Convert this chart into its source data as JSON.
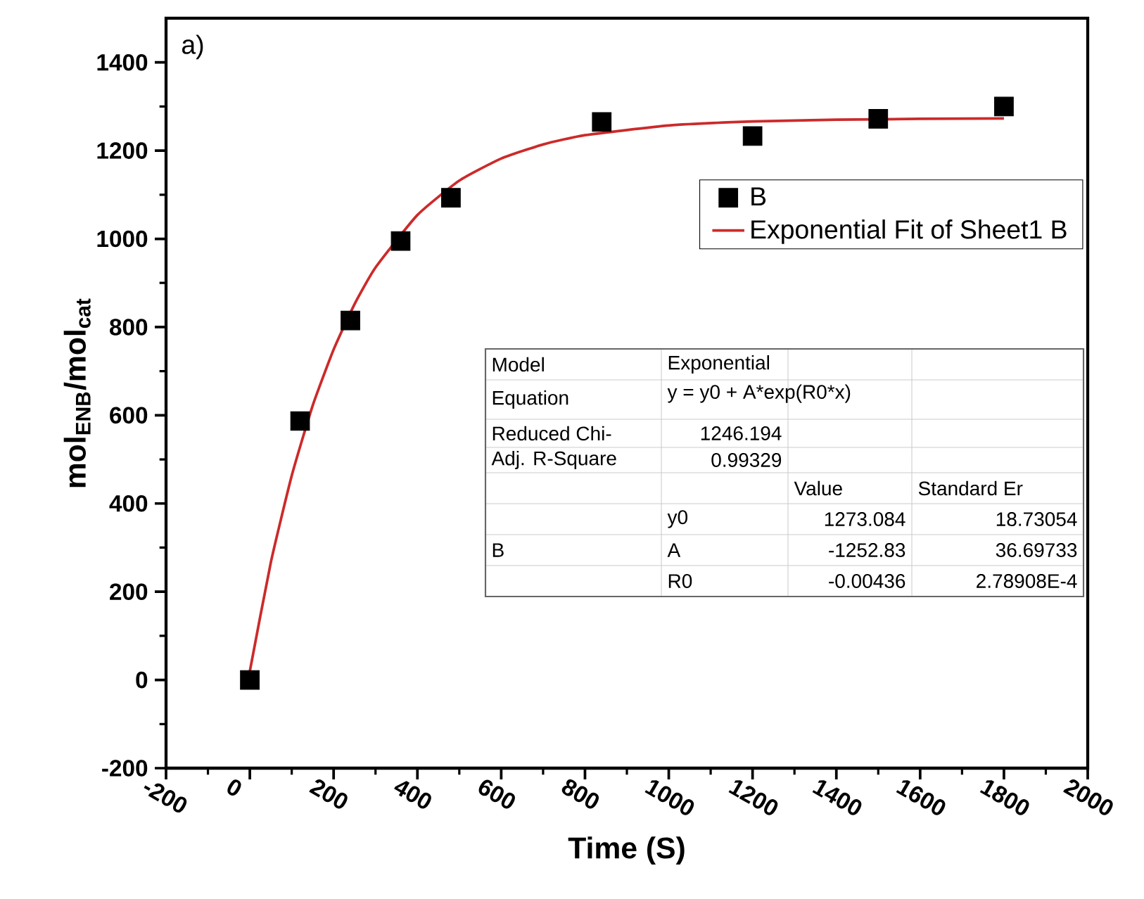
{
  "chart_data": {
    "type": "scatter",
    "xlabel": "Time (S)",
    "ylabel": "mol$_{ENB}$/mol$_{cat}$",
    "xlim": [
      -200,
      2000
    ],
    "xticks": [
      -200,
      0,
      200,
      400,
      600,
      800,
      1000,
      1200,
      1400,
      1600,
      1800,
      2000
    ],
    "ylim": [
      -200,
      1500
    ],
    "yticks": [
      -200,
      0,
      200,
      400,
      600,
      800,
      1000,
      1200,
      1400
    ],
    "legend": "top right",
    "series": [
      {
        "name": "B",
        "marker": "square",
        "color": "#000000",
        "x": [
          0,
          120,
          240,
          360,
          480,
          840,
          1200,
          1500,
          1800
        ],
        "values": [
          0,
          587,
          815,
          995,
          1093,
          1265,
          1233,
          1272,
          1300
        ]
      },
      {
        "name": "Exponential Fit of Sheet1 B",
        "type": "line",
        "marker": "none",
        "color": "#cc2a2a",
        "x": [
          0,
          50,
          100,
          150,
          200,
          250,
          300,
          400,
          500,
          600,
          700,
          800,
          1000,
          1200,
          1400,
          1600,
          1800
        ],
        "values": [
          20,
          266,
          463,
          622,
          749,
          852,
          935,
          1054,
          1132,
          1182,
          1214,
          1235,
          1257,
          1266,
          1270,
          1272,
          1273
        ]
      }
    ],
    "annotations": [
      "a)",
      "Model",
      "Exponential",
      "Equation",
      "y = y0 + A*exp(R0*x)",
      "Reduced Chi-",
      "1246.194",
      "Adj. R-Square",
      "0.99329",
      "Value",
      "Standard Er",
      "B",
      "y0",
      "1273.084",
      "18.73054",
      "A",
      "-1252.83",
      "36.69733",
      "R0",
      "-0.00436",
      "2.78908E-4"
    ]
  }
}
